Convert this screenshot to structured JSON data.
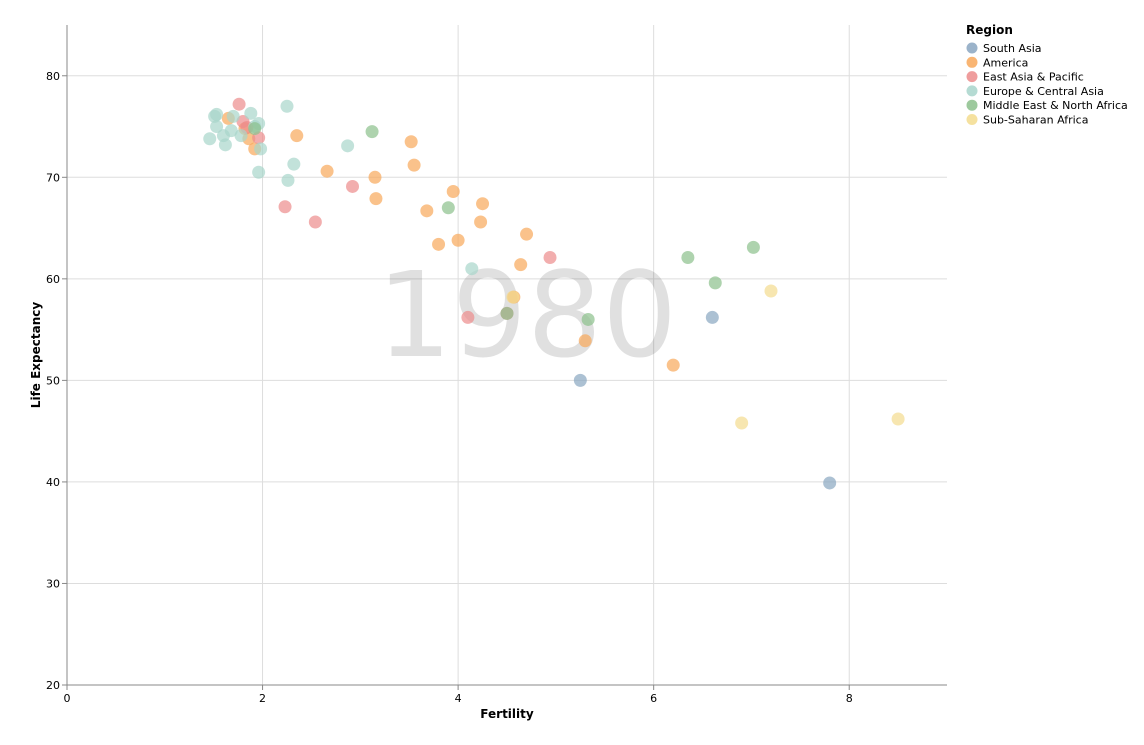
{
  "chart_data": {
    "type": "scatter",
    "title": "",
    "year_label": "1980",
    "xlabel": "Fertility",
    "ylabel": "Life Expectancy",
    "xlim": [
      0,
      9
    ],
    "ylim": [
      20,
      85
    ],
    "x_ticks": [
      0,
      2,
      4,
      6,
      8
    ],
    "y_ticks": [
      20,
      30,
      40,
      50,
      60,
      70,
      80
    ],
    "grid": true,
    "legend_placement": "top-right",
    "legend_title": "Region",
    "series": [
      {
        "name": "South Asia",
        "color": "#89a6c1",
        "points": [
          [
            5.25,
            50.0
          ],
          [
            6.6,
            56.2
          ],
          [
            7.8,
            39.9
          ]
        ]
      },
      {
        "name": "America",
        "color": "#f8a85a",
        "points": [
          [
            1.65,
            75.8
          ],
          [
            1.82,
            74.8
          ],
          [
            1.86,
            73.8
          ],
          [
            1.92,
            72.8
          ],
          [
            2.35,
            74.1
          ],
          [
            2.66,
            70.6
          ],
          [
            3.15,
            70.0
          ],
          [
            3.16,
            67.9
          ],
          [
            3.52,
            73.5
          ],
          [
            3.55,
            71.2
          ],
          [
            3.68,
            66.7
          ],
          [
            3.8,
            63.4
          ],
          [
            3.95,
            68.6
          ],
          [
            4.0,
            63.8
          ],
          [
            4.23,
            65.6
          ],
          [
            4.25,
            67.4
          ],
          [
            4.57,
            58.2
          ],
          [
            4.64,
            61.4
          ],
          [
            4.7,
            64.4
          ],
          [
            5.3,
            53.9
          ],
          [
            6.2,
            51.5
          ]
        ]
      },
      {
        "name": "East Asia & Pacific",
        "color": "#ec8c8c",
        "points": [
          [
            1.76,
            77.2
          ],
          [
            1.8,
            75.5
          ],
          [
            1.84,
            74.9
          ],
          [
            1.96,
            73.9
          ],
          [
            2.23,
            67.1
          ],
          [
            2.54,
            65.6
          ],
          [
            2.92,
            69.1
          ],
          [
            4.1,
            56.2
          ],
          [
            4.94,
            62.1
          ],
          [
            4.5,
            56.6
          ]
        ]
      },
      {
        "name": "Europe & Central Asia",
        "color": "#a8d5cb",
        "points": [
          [
            1.46,
            73.8
          ],
          [
            1.51,
            76.0
          ],
          [
            1.53,
            76.2
          ],
          [
            1.53,
            75.0
          ],
          [
            1.6,
            74.1
          ],
          [
            1.62,
            73.2
          ],
          [
            1.68,
            74.6
          ],
          [
            1.7,
            76.0
          ],
          [
            1.78,
            74.1
          ],
          [
            1.88,
            76.3
          ],
          [
            1.92,
            75.0
          ],
          [
            1.96,
            75.3
          ],
          [
            1.98,
            72.8
          ],
          [
            1.96,
            70.5
          ],
          [
            2.25,
            77.0
          ],
          [
            2.26,
            69.7
          ],
          [
            2.32,
            71.3
          ],
          [
            2.87,
            73.1
          ],
          [
            4.14,
            61.0
          ]
        ]
      },
      {
        "name": "Middle East & North Africa",
        "color": "#8cc08c",
        "points": [
          [
            1.92,
            74.8
          ],
          [
            3.12,
            74.5
          ],
          [
            3.9,
            67.0
          ],
          [
            5.33,
            56.0
          ],
          [
            6.35,
            62.1
          ],
          [
            6.63,
            59.6
          ],
          [
            7.02,
            63.1
          ],
          [
            4.5,
            56.6
          ]
        ]
      },
      {
        "name": "Sub-Saharan Africa",
        "color": "#f3dc8e",
        "points": [
          [
            4.56,
            58.2
          ],
          [
            6.9,
            45.8
          ],
          [
            7.2,
            58.8
          ],
          [
            8.5,
            46.2
          ]
        ]
      }
    ]
  }
}
